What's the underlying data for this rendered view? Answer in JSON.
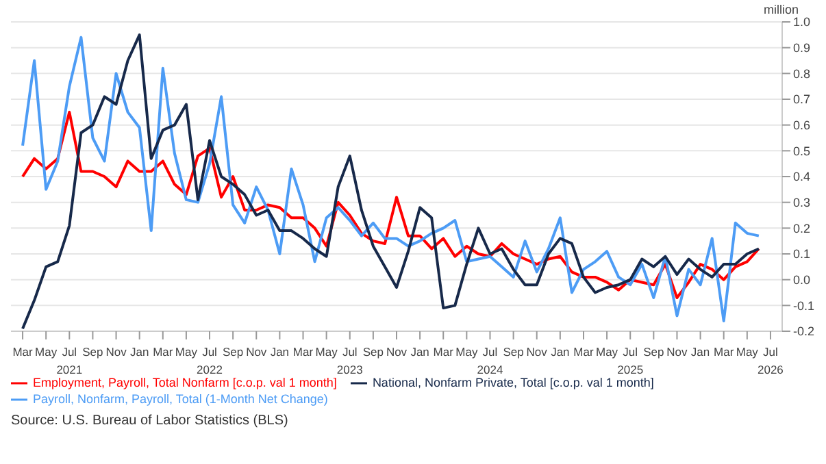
{
  "chart_data": {
    "type": "line",
    "ylabel": "million",
    "annotations": [
      "Source: U.S. Bureau of Labor Statistics (BLS)"
    ],
    "x": [
      "2021-03",
      "2021-04",
      "2021-05",
      "2021-06",
      "2021-07",
      "2021-08",
      "2021-09",
      "2021-10",
      "2021-11",
      "2021-12",
      "2022-01",
      "2022-02",
      "2022-03",
      "2022-04",
      "2022-05",
      "2022-06",
      "2022-07",
      "2022-08",
      "2022-09",
      "2022-10",
      "2022-11",
      "2022-12",
      "2023-01",
      "2023-02",
      "2023-03",
      "2023-04",
      "2023-05",
      "2023-06",
      "2023-07",
      "2023-08",
      "2023-09",
      "2023-10",
      "2023-11",
      "2023-12",
      "2024-01",
      "2024-02",
      "2024-03",
      "2024-04",
      "2024-05",
      "2024-06",
      "2024-07",
      "2024-08",
      "2024-09",
      "2024-10",
      "2024-11",
      "2024-12",
      "2025-01",
      "2025-02",
      "2025-03",
      "2025-04",
      "2025-05",
      "2025-06",
      "2025-07",
      "2025-08",
      "2025-09",
      "2025-10",
      "2025-11",
      "2025-12",
      "2026-01",
      "2026-02",
      "2026-03",
      "2026-04",
      "2026-05",
      "2026-06"
    ],
    "series": [
      {
        "name": "Employment, Payroll, Total Nonfarm [c.o.p. val 1 month]",
        "color": "#ff0000",
        "values": [
          0.4,
          0.47,
          0.43,
          0.47,
          0.65,
          0.42,
          0.42,
          0.4,
          0.36,
          0.46,
          0.42,
          0.42,
          0.46,
          0.37,
          0.33,
          0.48,
          0.51,
          0.32,
          0.4,
          0.27,
          0.27,
          0.29,
          0.28,
          0.24,
          0.24,
          0.2,
          0.13,
          0.3,
          0.25,
          0.18,
          0.15,
          0.14,
          0.32,
          0.17,
          0.17,
          0.12,
          0.16,
          0.09,
          0.13,
          0.1,
          0.09,
          0.14,
          0.1,
          0.08,
          0.06,
          0.08,
          0.09,
          0.03,
          0.01,
          0.01,
          -0.01,
          -0.04,
          0.0,
          -0.01,
          -0.02,
          0.06,
          -0.07,
          -0.01,
          0.06,
          0.04,
          0.0,
          0.05,
          0.07,
          0.12
        ]
      },
      {
        "name": "Payroll, Nonfarm, Payroll, Total (1-Month Net Change)",
        "color": "#4d9cf5",
        "values": [
          0.52,
          0.85,
          0.35,
          0.46,
          0.75,
          0.94,
          0.55,
          0.46,
          0.8,
          0.65,
          0.59,
          0.19,
          0.82,
          0.49,
          0.31,
          0.3,
          0.45,
          0.71,
          0.29,
          0.22,
          0.36,
          0.27,
          0.1,
          0.43,
          0.29,
          0.07,
          0.24,
          0.28,
          0.23,
          0.17,
          0.22,
          0.16,
          0.16,
          0.13,
          0.15,
          0.18,
          0.2,
          0.23,
          0.07,
          0.08,
          0.09,
          0.05,
          0.01,
          0.15,
          0.03,
          0.12,
          0.24,
          -0.05,
          0.04,
          0.07,
          0.11,
          0.01,
          -0.02,
          0.06,
          -0.07,
          0.09,
          -0.14,
          0.04,
          -0.02,
          0.16,
          -0.16,
          0.22,
          0.18,
          0.17
        ]
      },
      {
        "name": "National, Nonfarm Private, Total [c.o.p. val 1 month]",
        "color": "#17294a",
        "values": [
          -0.19,
          -0.08,
          0.05,
          0.07,
          0.21,
          0.57,
          0.6,
          0.71,
          0.68,
          0.85,
          0.95,
          0.47,
          0.58,
          0.6,
          0.68,
          0.31,
          0.54,
          0.4,
          0.37,
          0.33,
          0.25,
          0.27,
          0.19,
          0.19,
          0.16,
          0.12,
          0.09,
          0.36,
          0.48,
          0.27,
          0.13,
          0.05,
          -0.03,
          0.11,
          0.28,
          0.24,
          -0.11,
          -0.1,
          0.06,
          0.2,
          0.1,
          0.12,
          0.04,
          -0.02,
          -0.02,
          0.1,
          0.16,
          0.14,
          0.01,
          -0.05,
          -0.03,
          -0.02,
          0.0,
          0.08,
          0.05,
          0.09,
          0.02,
          0.08,
          0.04,
          0.01,
          0.06,
          0.06,
          0.1,
          0.12
        ]
      }
    ],
    "xlim": [
      "2021-02",
      "2026-08"
    ],
    "xticks": [
      {
        "value": "2021-03",
        "label": "Mar"
      },
      {
        "value": "2021-05",
        "label": "May"
      },
      {
        "value": "2021-07",
        "label": "Jul\n2021"
      },
      {
        "value": "2021-09",
        "label": "Sep"
      },
      {
        "value": "2021-11",
        "label": "Nov"
      },
      {
        "value": "2022-01",
        "label": "Jan"
      },
      {
        "value": "2022-03",
        "label": "Mar"
      },
      {
        "value": "2022-05",
        "label": "May"
      },
      {
        "value": "2022-07",
        "label": "Jul\n2022"
      },
      {
        "value": "2022-09",
        "label": "Sep"
      },
      {
        "value": "2022-11",
        "label": "Nov"
      },
      {
        "value": "2023-01",
        "label": "Jan"
      },
      {
        "value": "2023-03",
        "label": "Mar"
      },
      {
        "value": "2023-05",
        "label": "May"
      },
      {
        "value": "2023-07",
        "label": "Jul\n2023"
      },
      {
        "value": "2023-09",
        "label": "Sep"
      },
      {
        "value": "2023-11",
        "label": "Nov"
      },
      {
        "value": "2024-01",
        "label": "Jan"
      },
      {
        "value": "2024-03",
        "label": "Mar"
      },
      {
        "value": "2024-05",
        "label": "May"
      },
      {
        "value": "2024-07",
        "label": "Jul\n2024"
      },
      {
        "value": "2024-09",
        "label": "Sep"
      },
      {
        "value": "2024-11",
        "label": "Nov"
      },
      {
        "value": "2025-01",
        "label": "Jan"
      },
      {
        "value": "2025-03",
        "label": "Mar"
      },
      {
        "value": "2025-05",
        "label": "May"
      },
      {
        "value": "2025-07",
        "label": "Jul\n2025"
      },
      {
        "value": "2025-09",
        "label": "Sep"
      },
      {
        "value": "2025-11",
        "label": "Nov"
      },
      {
        "value": "2026-01",
        "label": "Jan"
      },
      {
        "value": "2026-03",
        "label": "Mar"
      },
      {
        "value": "2026-05",
        "label": "May"
      },
      {
        "value": "2026-07",
        "label": "Jul\n2026"
      }
    ],
    "ylim": [
      -0.2,
      1.0
    ],
    "yticks": [
      {
        "value": -0.2,
        "label": "-0.2"
      },
      {
        "value": -0.1,
        "label": "-0.1"
      },
      {
        "value": 0,
        "label": "0.0"
      },
      {
        "value": 0.1,
        "label": "0.1"
      },
      {
        "value": 0.2,
        "label": "0.2"
      },
      {
        "value": 0.3,
        "label": "0.3"
      },
      {
        "value": 0.4,
        "label": "0.4"
      },
      {
        "value": 0.5,
        "label": "0.5"
      },
      {
        "value": 0.6,
        "label": "0.6"
      },
      {
        "value": 0.7,
        "label": "0.7"
      },
      {
        "value": 0.8,
        "label": "0.8"
      },
      {
        "value": 0.9,
        "label": "0.9"
      },
      {
        "value": 1,
        "label": "1.0"
      }
    ],
    "grid": "y",
    "legend": "bottom",
    "marker": "none",
    "line_style": "solid"
  }
}
